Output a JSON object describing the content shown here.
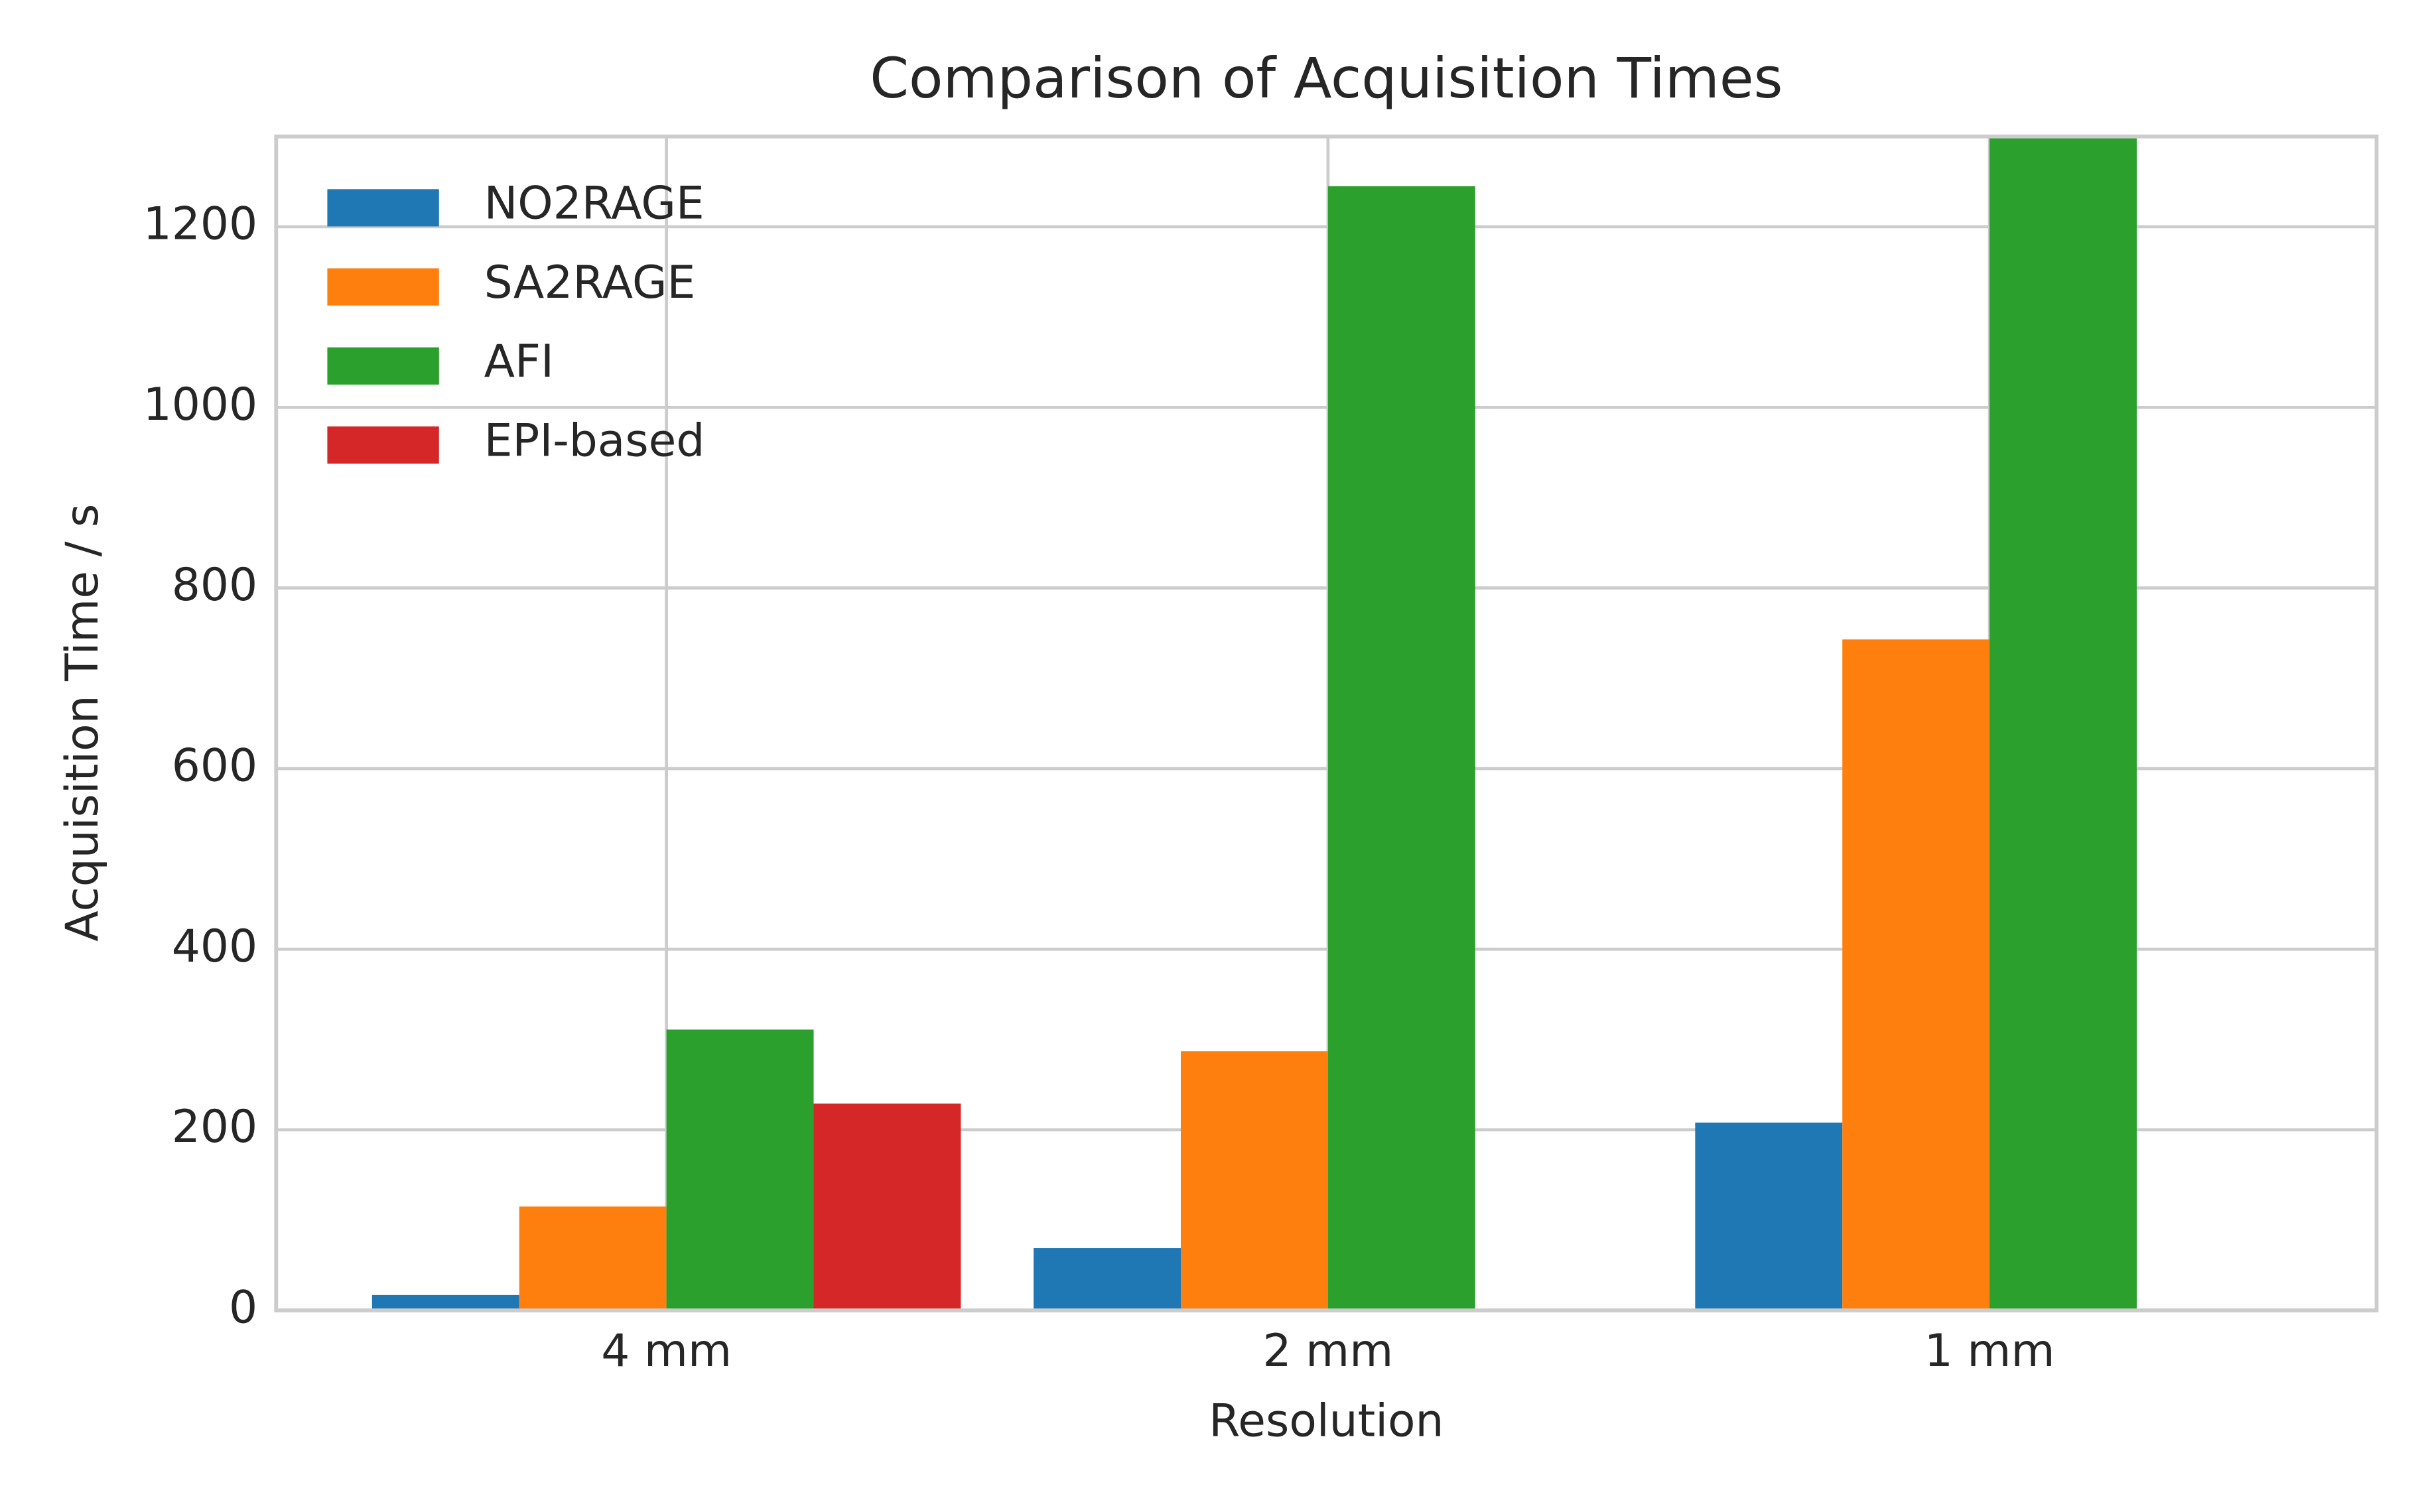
{
  "chart_data": {
    "type": "bar",
    "title": "Comparison of Acquisition Times",
    "x_label": "Resolution",
    "y_label": "Acquisition Time / s",
    "categories": [
      "4 mm",
      "2 mm",
      "1 mm"
    ],
    "series": [
      {
        "name": "NO2RAGE",
        "color": "#1f77b4",
        "values": [
          17,
          69,
          208
        ]
      },
      {
        "name": "SA2RAGE",
        "color": "#ff7f0e",
        "values": [
          115,
          287,
          743
        ]
      },
      {
        "name": "AFI",
        "color": "#2ca02c",
        "values": [
          311,
          1245,
          1300
        ]
      },
      {
        "name": "EPI-based",
        "color": "#d62728",
        "values": [
          229,
          null,
          null
        ]
      }
    ],
    "ylim": [
      0,
      1300
    ],
    "yticks": [
      0,
      200,
      400,
      600,
      800,
      1000,
      1200
    ],
    "grid": true,
    "legend": "upper left"
  }
}
